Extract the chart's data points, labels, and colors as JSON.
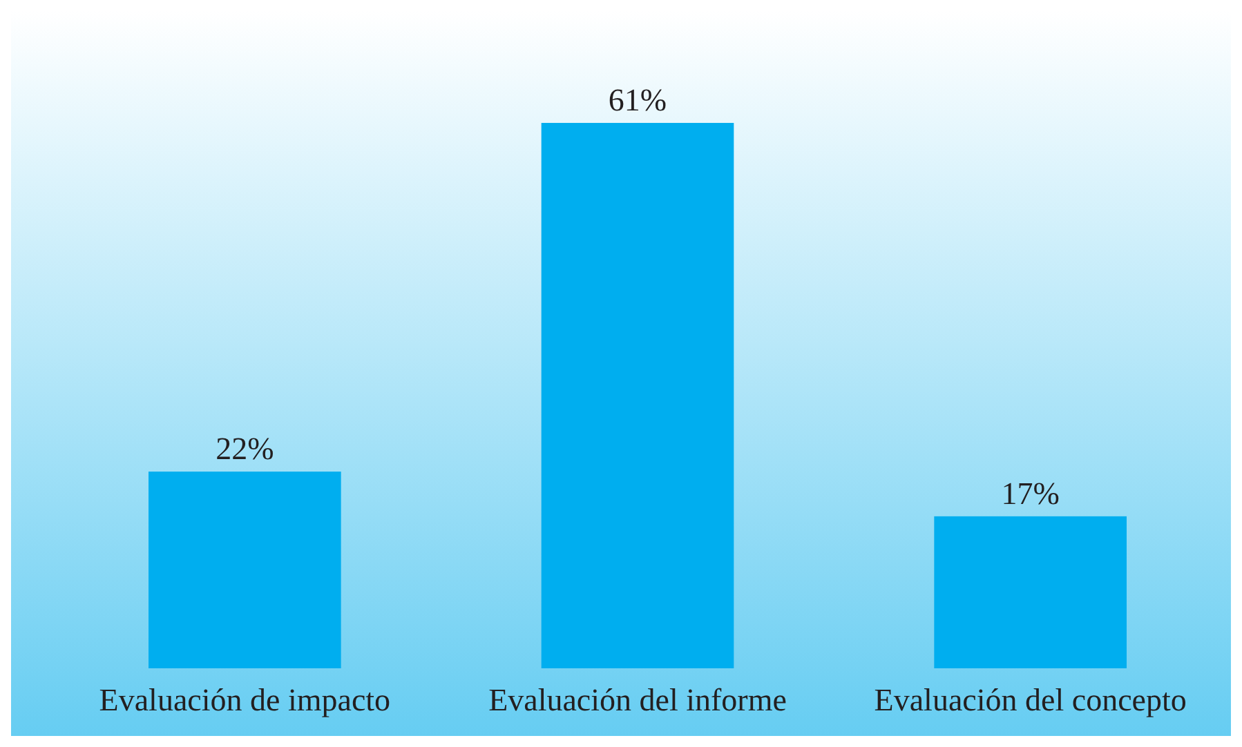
{
  "chart_data": {
    "type": "bar",
    "categories": [
      "Evaluación de impacto",
      "Evaluación del informe",
      "Evaluación del concepto"
    ],
    "values": [
      22,
      61,
      17
    ],
    "value_labels": [
      "22%",
      "61%",
      "17%"
    ],
    "color": "#00aeef"
  }
}
